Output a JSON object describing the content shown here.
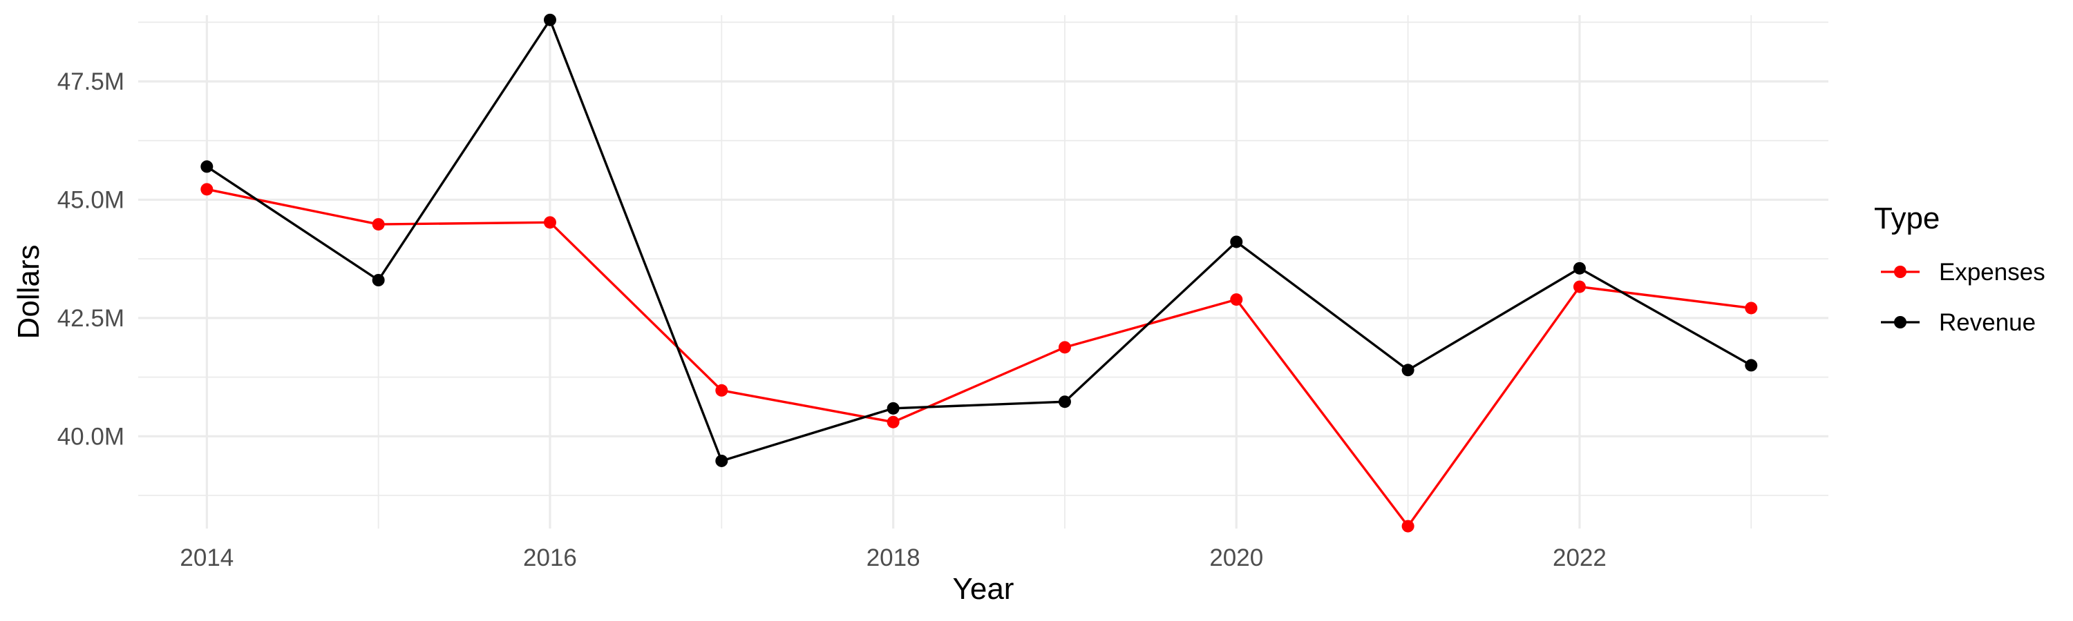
{
  "chart_data": {
    "type": "line",
    "xlabel": "Year",
    "ylabel": "Dollars",
    "x": [
      2014,
      2015,
      2016,
      2017,
      2018,
      2019,
      2020,
      2021,
      2022,
      2023
    ],
    "xlim": [
      2013.6,
      2023.45
    ],
    "x_ticks": [
      2014,
      2016,
      2018,
      2020,
      2022
    ],
    "x_tick_labels": [
      "2014",
      "2016",
      "2018",
      "2020",
      "2022"
    ],
    "ylim": [
      38.05,
      48.9
    ],
    "y_ticks": [
      40.0,
      42.5,
      45.0,
      47.5
    ],
    "y_tick_labels": [
      "40.0M",
      "42.5M",
      "45.0M",
      "47.5M"
    ],
    "y_unit": "M",
    "grid": true,
    "legend": {
      "title": "Type",
      "placement": "right"
    },
    "series": [
      {
        "name": "Expenses",
        "color": "#ff0000",
        "values": [
          45.22,
          44.48,
          44.52,
          40.97,
          40.3,
          41.88,
          42.89,
          38.1,
          43.16,
          42.71
        ]
      },
      {
        "name": "Revenue",
        "color": "#000000",
        "values": [
          45.7,
          43.3,
          48.8,
          39.48,
          40.59,
          40.73,
          44.11,
          41.4,
          43.55,
          41.5
        ]
      }
    ]
  }
}
